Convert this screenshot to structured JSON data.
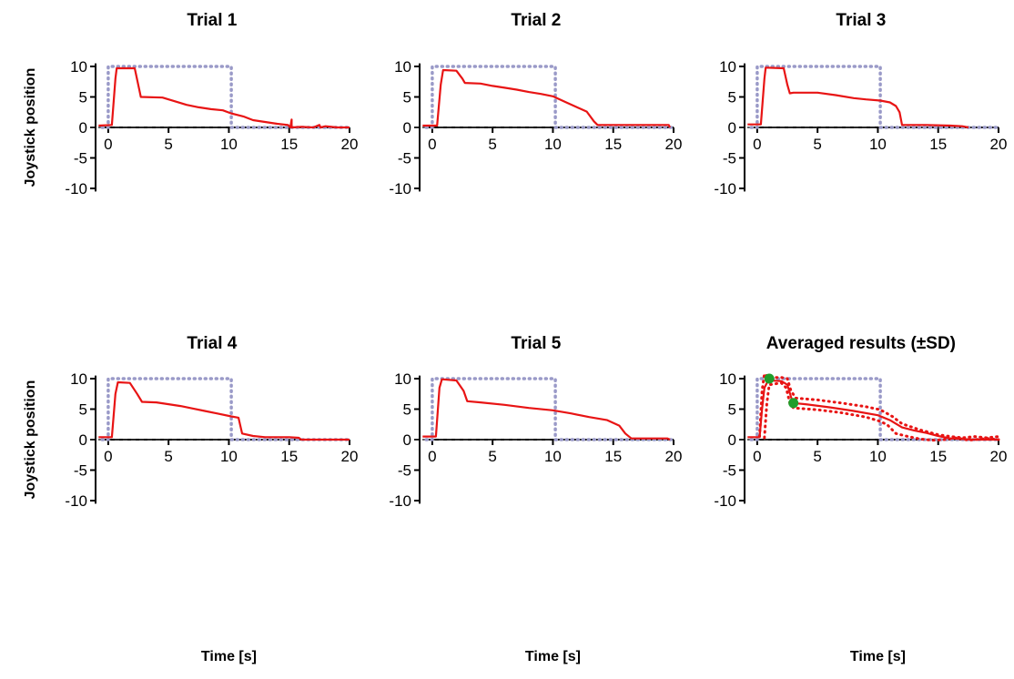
{
  "figure": {
    "xlabel": "Time [s]",
    "ylabel": "Joystick position"
  },
  "colors": {
    "response": "#e81414",
    "reference": "#9a9ac8",
    "marker": "#1f9e2a",
    "zero_line": "#333333"
  },
  "chart_data": [
    {
      "type": "line",
      "title": "Trial 1",
      "xlabel": "",
      "ylabel": "Joystick position",
      "xlim": [
        -1.5,
        20
      ],
      "ylim": [
        -10.5,
        10.5
      ],
      "xticks": [
        0,
        5,
        10,
        15,
        20
      ],
      "yticks": [
        -10,
        -5,
        0,
        5,
        10
      ],
      "series": [
        {
          "role": "reference",
          "style": "dotted",
          "x": [
            -0.5,
            0,
            0,
            10.2,
            10.2,
            20
          ],
          "y": [
            0,
            0,
            10,
            10,
            0,
            0
          ]
        },
        {
          "role": "response",
          "style": "solid",
          "x": [
            -0.8,
            0.3,
            0.6,
            0.7,
            2.2,
            2.6,
            2.7,
            4.5,
            5.5,
            6.5,
            7.5,
            8.5,
            9.5,
            10.2,
            11.2,
            12,
            13,
            14,
            14.9,
            15.1,
            15.2,
            15.2,
            16,
            17,
            17.5,
            17.6,
            18,
            19,
            20
          ],
          "y": [
            0.3,
            0.4,
            8,
            9.7,
            9.7,
            6,
            5.0,
            4.9,
            4.3,
            3.7,
            3.3,
            3.0,
            2.8,
            2.3,
            1.8,
            1.2,
            0.9,
            0.6,
            0.4,
            0.0,
            1.3,
            0.0,
            0.1,
            0.0,
            0.4,
            0.0,
            0.2,
            0.0,
            0.0
          ]
        }
      ]
    },
    {
      "type": "line",
      "title": "Trial 2",
      "xlim": [
        -1.5,
        20
      ],
      "ylim": [
        -10.5,
        10.5
      ],
      "xticks": [
        0,
        5,
        10,
        15,
        20
      ],
      "yticks": [
        -10,
        -5,
        0,
        5,
        10
      ],
      "series": [
        {
          "role": "reference",
          "style": "dotted",
          "x": [
            -0.5,
            0,
            0,
            10.2,
            10.2,
            20
          ],
          "y": [
            0,
            0,
            10,
            10,
            0,
            0
          ]
        },
        {
          "role": "response",
          "style": "solid",
          "x": [
            -0.8,
            0.4,
            0.7,
            0.9,
            2.0,
            2.5,
            2.7,
            4,
            5,
            6,
            7,
            8,
            9,
            10,
            11,
            12,
            12.8,
            13.4,
            13.7,
            15,
            17,
            19,
            19.6,
            19.7
          ],
          "y": [
            0.3,
            0.3,
            7,
            9.4,
            9.3,
            8,
            7.3,
            7.2,
            6.8,
            6.5,
            6.2,
            5.8,
            5.5,
            5.1,
            4.2,
            3.3,
            2.6,
            1.0,
            0.4,
            0.4,
            0.4,
            0.4,
            0.4,
            0.0
          ]
        }
      ]
    },
    {
      "type": "line",
      "title": "Trial 3",
      "xlim": [
        -1.5,
        20
      ],
      "ylim": [
        -10.5,
        10.5
      ],
      "xticks": [
        0,
        5,
        10,
        15,
        20
      ],
      "yticks": [
        -10,
        -5,
        0,
        5,
        10
      ],
      "series": [
        {
          "role": "reference",
          "style": "dotted",
          "x": [
            -0.5,
            0,
            0,
            10.2,
            10.2,
            20
          ],
          "y": [
            0,
            0,
            10,
            10,
            0,
            0
          ]
        },
        {
          "role": "response",
          "style": "solid",
          "x": [
            -0.8,
            0.3,
            0.6,
            0.7,
            2.2,
            2.5,
            2.7,
            3,
            5,
            6.5,
            8,
            9,
            10.2,
            11,
            11.5,
            11.8,
            12,
            14,
            16,
            17,
            17.5
          ],
          "y": [
            0.5,
            0.5,
            8,
            9.8,
            9.7,
            7,
            5.6,
            5.7,
            5.7,
            5.3,
            4.8,
            4.6,
            4.4,
            4.1,
            3.5,
            2.5,
            0.4,
            0.4,
            0.3,
            0.2,
            0.0
          ]
        }
      ]
    },
    {
      "type": "line",
      "title": "Trial 4",
      "xlim": [
        -1.5,
        20
      ],
      "ylim": [
        -10.5,
        10.5
      ],
      "xticks": [
        0,
        5,
        10,
        15,
        20
      ],
      "yticks": [
        -10,
        -5,
        0,
        5,
        10
      ],
      "series": [
        {
          "role": "reference",
          "style": "dotted",
          "x": [
            -0.5,
            0,
            0,
            10.2,
            10.2,
            20
          ],
          "y": [
            0,
            0,
            10,
            10,
            0,
            0
          ]
        },
        {
          "role": "response",
          "style": "solid",
          "x": [
            -0.8,
            0.3,
            0.6,
            0.8,
            1.8,
            2.4,
            2.8,
            4,
            5,
            6,
            7,
            8,
            9,
            10.2,
            10.8,
            11.1,
            12,
            13,
            15,
            15.8,
            16,
            18,
            20
          ],
          "y": [
            0.4,
            0.4,
            7.5,
            9.4,
            9.3,
            7.5,
            6.2,
            6.1,
            5.8,
            5.5,
            5.1,
            4.7,
            4.3,
            3.8,
            3.6,
            1.0,
            0.6,
            0.4,
            0.4,
            0.3,
            0.0,
            0.0,
            0.0
          ]
        }
      ]
    },
    {
      "type": "line",
      "title": "Trial 5",
      "xlim": [
        -1.5,
        20
      ],
      "ylim": [
        -10.5,
        10.5
      ],
      "xticks": [
        0,
        5,
        10,
        15,
        20
      ],
      "yticks": [
        -10,
        -5,
        0,
        5,
        10
      ],
      "series": [
        {
          "role": "reference",
          "style": "dotted",
          "x": [
            -0.5,
            0,
            0,
            10.2,
            10.2,
            20
          ],
          "y": [
            0,
            0,
            10,
            10,
            0,
            0
          ]
        },
        {
          "role": "response",
          "style": "solid",
          "x": [
            -0.8,
            0.3,
            0.6,
            0.8,
            2.0,
            2.6,
            2.9,
            4,
            6,
            8,
            10,
            11.5,
            13,
            14.5,
            15.5,
            16,
            16.5,
            18,
            19.5,
            19.7
          ],
          "y": [
            0.5,
            0.5,
            8.5,
            9.9,
            9.7,
            8,
            6.3,
            6.1,
            5.7,
            5.2,
            4.8,
            4.3,
            3.7,
            3.2,
            2.3,
            1.0,
            0.2,
            0.2,
            0.2,
            0.0
          ]
        }
      ]
    },
    {
      "type": "line",
      "title": "Averaged results (±SD)",
      "xlim": [
        -1.5,
        20
      ],
      "ylim": [
        -10.5,
        10.5
      ],
      "xticks": [
        0,
        5,
        10,
        15,
        20
      ],
      "yticks": [
        -10,
        -5,
        0,
        5,
        10
      ],
      "series": [
        {
          "role": "reference",
          "style": "dotted",
          "x": [
            -0.5,
            0,
            0,
            10.2,
            10.2,
            20
          ],
          "y": [
            0,
            0,
            10,
            10,
            0,
            0
          ]
        },
        {
          "role": "response",
          "style": "solid",
          "x": [
            -0.8,
            0.2,
            0.4,
            0.6,
            0.8,
            1.0,
            2.0,
            2.5,
            2.8,
            3.0,
            4,
            6,
            8,
            10,
            11,
            12,
            13,
            14,
            15,
            16,
            18,
            20
          ],
          "y": [
            0.4,
            0.4,
            5,
            8.5,
            9.3,
            9.7,
            9.6,
            9.0,
            7.0,
            6.0,
            5.8,
            5.3,
            4.7,
            4.0,
            3.2,
            2.0,
            1.5,
            1.1,
            0.6,
            0.2,
            0.0,
            0.0
          ]
        },
        {
          "role": "response",
          "style": "dotted",
          "x": [
            0.2,
            0.4,
            0.6,
            0.9,
            2.0,
            2.5,
            2.8,
            3.2,
            5,
            7,
            9,
            10.2,
            11.2,
            12,
            13.5,
            15,
            16,
            17,
            18,
            19,
            20
          ],
          "y": [
            0.5,
            8,
            10.8,
            10.2,
            10.2,
            10.0,
            8.0,
            6.8,
            6.5,
            6.0,
            5.4,
            4.9,
            3.8,
            2.6,
            1.6,
            0.8,
            0.5,
            0.3,
            0.5,
            0.3,
            0.5
          ]
        },
        {
          "role": "response",
          "style": "dotted",
          "x": [
            0.6,
            0.8,
            1.0,
            2.0,
            2.4,
            2.7,
            3.0,
            5,
            7,
            9,
            10.2,
            10.8,
            11.5,
            12.5,
            13.5,
            14.5,
            15.5,
            16.5,
            17.5,
            19,
            20
          ],
          "y": [
            0.3,
            6,
            9.0,
            9.3,
            8.5,
            6.0,
            5.2,
            4.9,
            4.4,
            3.7,
            3.0,
            2.4,
            1.0,
            0.5,
            0.1,
            -0.1,
            0.0,
            0.3,
            -0.1,
            0.2,
            0.0
          ]
        },
        {
          "role": "marker",
          "style": "point",
          "x": [
            1.0,
            3.0
          ],
          "y": [
            10,
            6
          ]
        }
      ]
    }
  ]
}
